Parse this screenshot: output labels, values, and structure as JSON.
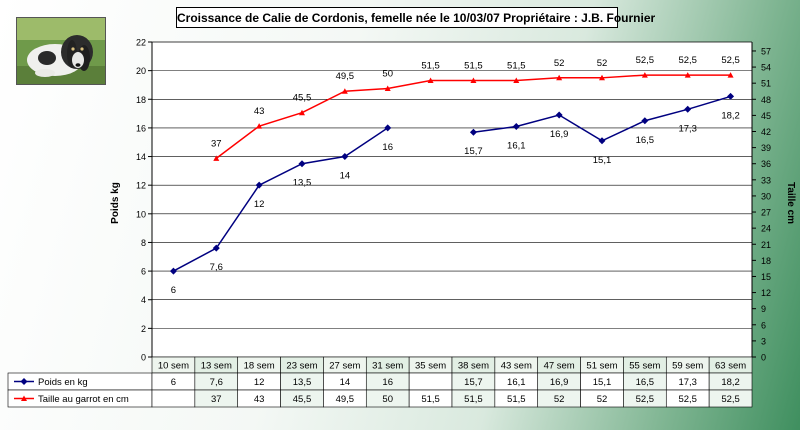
{
  "chart_data": {
    "type": "line",
    "title": "Croissance de Calie de Cordonis, femelle née le 10/03/07  Propriétaire : J.B. Fournier",
    "categories": [
      "10 sem",
      "13 sem",
      "18 sem",
      "23 sem",
      "27 sem",
      "31 sem",
      "35 sem",
      "38 sem",
      "43 sem",
      "47 sem",
      "51 sem",
      "55 sem",
      "59 sem",
      "63 sem"
    ],
    "ylabel": "Poids kg",
    "ylabel_right": "Taille cm",
    "ylim": [
      0,
      22
    ],
    "ylim_right": [
      0,
      58.67
    ],
    "yticks": [
      0,
      2,
      4,
      6,
      8,
      10,
      12,
      14,
      16,
      18,
      20,
      22
    ],
    "yticks_right": [
      0,
      3,
      6,
      9,
      12,
      15,
      18,
      21,
      24,
      27,
      30,
      33,
      36,
      39,
      42,
      45,
      48,
      51,
      54,
      57
    ],
    "grid": true,
    "legend": "table-below",
    "series": [
      {
        "name": "Poids en kg",
        "axis": "left",
        "color": "#000080",
        "marker": "diamond",
        "values": [
          6,
          7.6,
          12,
          13.5,
          14,
          16,
          null,
          15.7,
          16.1,
          16.9,
          15.1,
          16.5,
          17.3,
          18.2
        ],
        "labels": [
          "6",
          "7,6",
          "12",
          "13,5",
          "14",
          "16",
          "",
          "15,7",
          "16,1",
          "16,9",
          "15,1",
          "16,5",
          "17,3",
          "18,2"
        ]
      },
      {
        "name": "Taille au garrot en cm",
        "axis": "right",
        "color": "#ff0000",
        "marker": "triangle",
        "values": [
          null,
          37,
          43,
          45.5,
          49.5,
          50,
          51.5,
          51.5,
          51.5,
          52,
          52,
          52.5,
          52.5,
          52.5
        ],
        "labels": [
          "",
          "37",
          "43",
          "45,5",
          "49,5",
          "50",
          "51,5",
          "51,5",
          "51,5",
          "52",
          "52",
          "52,5",
          "52,5",
          "52,5"
        ]
      }
    ]
  },
  "photo": {
    "icon": "dog-photo"
  }
}
